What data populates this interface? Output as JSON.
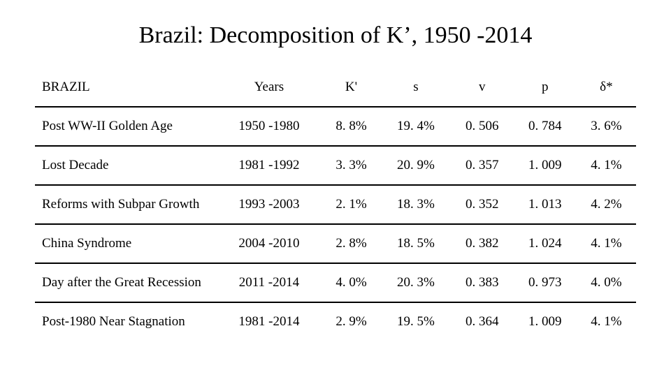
{
  "title": "Brazil: Decomposition of K’, 1950 -2014",
  "table": {
    "caption": "BRAZIL",
    "columns": [
      "Years",
      "K'",
      "s",
      "v",
      "p",
      "δ*"
    ],
    "rows": [
      {
        "label": "Post WW-II Golden Age",
        "cells": [
          "1950 -1980",
          "8. 8%",
          "19. 4%",
          "0. 506",
          "0. 784",
          "3. 6%"
        ]
      },
      {
        "label": "Lost Decade",
        "cells": [
          "1981 -1992",
          "3. 3%",
          "20. 9%",
          "0. 357",
          "1. 009",
          "4. 1%"
        ]
      },
      {
        "label": "Reforms with Subpar Growth",
        "cells": [
          "1993 -2003",
          "2. 1%",
          "18. 3%",
          "0. 352",
          "1. 013",
          "4. 2%"
        ]
      },
      {
        "label": "China Syndrome",
        "cells": [
          "2004 -2010",
          "2. 8%",
          "18. 5%",
          "0. 382",
          "1. 024",
          "4. 1%"
        ]
      },
      {
        "label": "Day after the Great Recession",
        "cells": [
          "2011 -2014",
          "4. 0%",
          "20. 3%",
          "0. 383",
          "0. 973",
          "4. 0%"
        ]
      },
      {
        "label": "Post-1980 Near Stagnation",
        "cells": [
          "1981 -2014",
          "2. 9%",
          "19. 5%",
          "0. 364",
          "1. 009",
          "4. 1%"
        ]
      }
    ],
    "col_widths": [
      "260px",
      "120px",
      "100px",
      "110px",
      "110px",
      "110px",
      "100px"
    ]
  },
  "colors": {
    "background": "#ffffff",
    "text": "#000000",
    "border": "#000000"
  },
  "font": {
    "family": "Times New Roman",
    "title_size": 34,
    "body_size": 19
  }
}
